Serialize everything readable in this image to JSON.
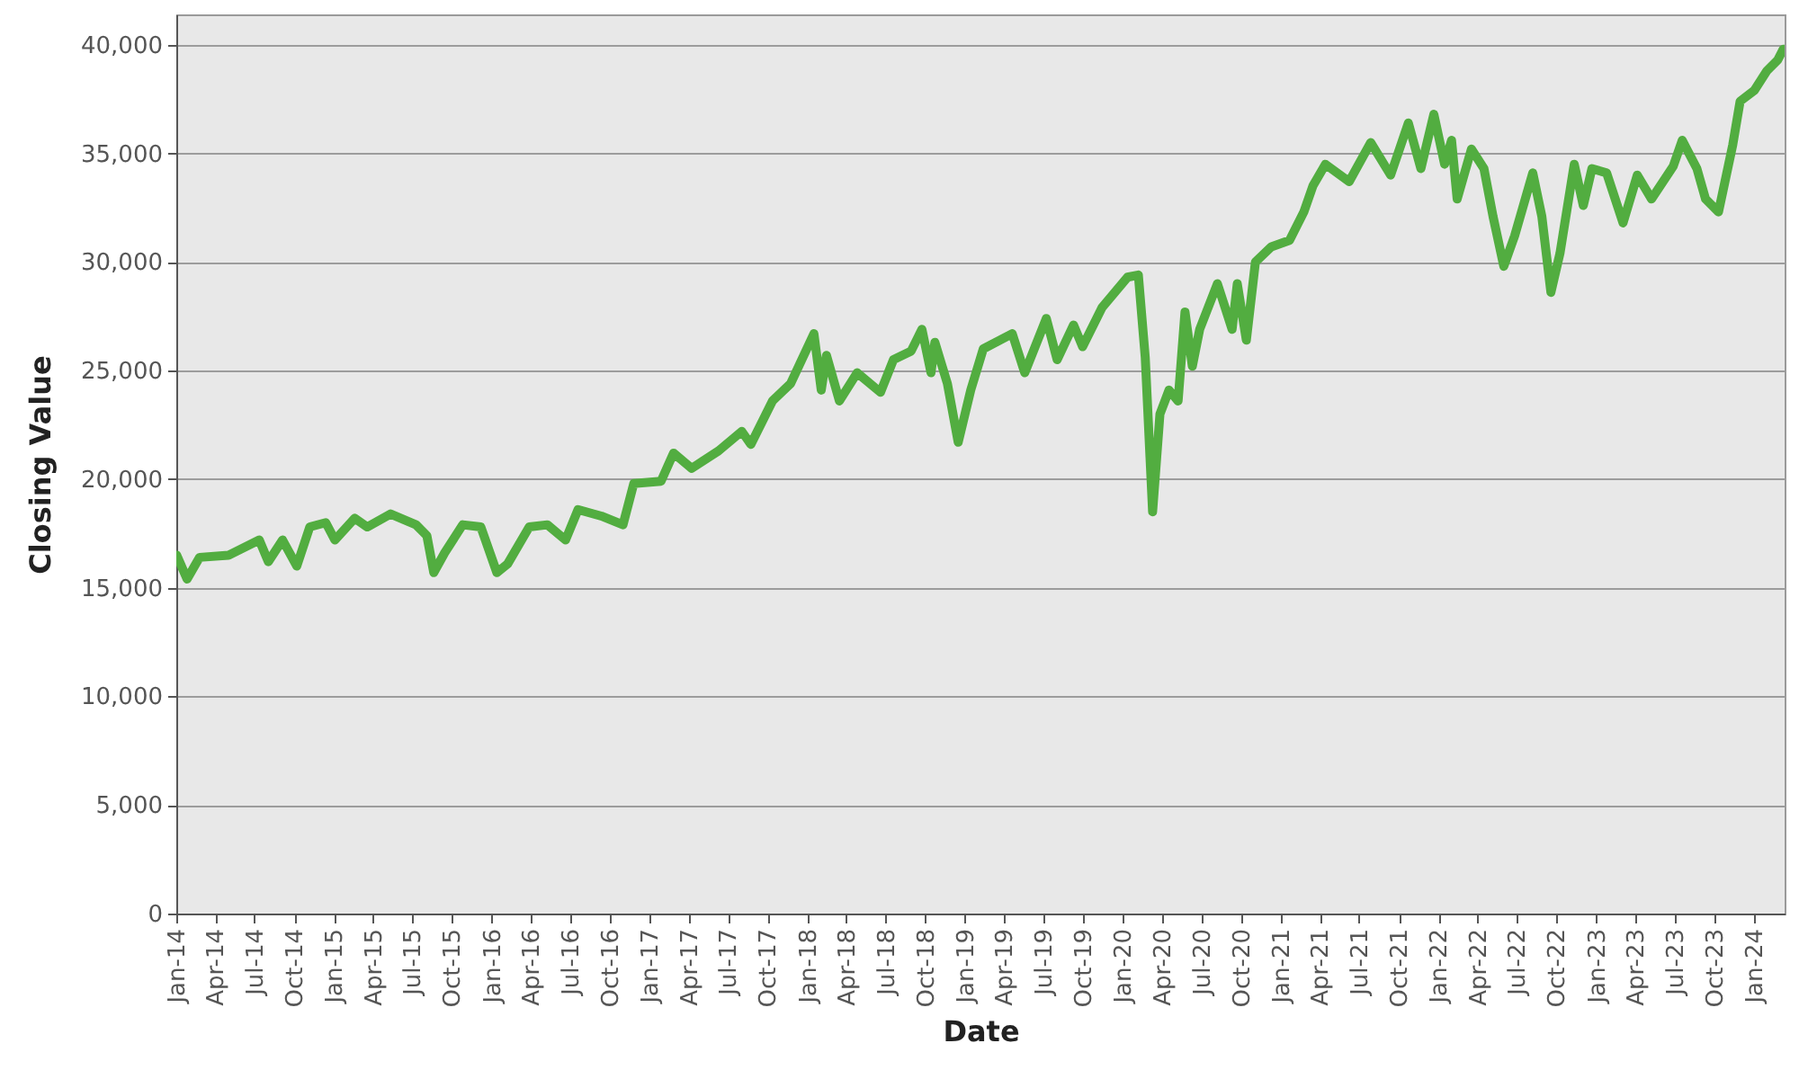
{
  "chart_data": {
    "type": "line",
    "xlabel": "Date",
    "ylabel": "Closing Value",
    "x": [
      "2014-01-02",
      "2014-01-26",
      "2014-02-24",
      "2014-05-02",
      "2014-07-12",
      "2014-08-02",
      "2014-09-04",
      "2014-10-07",
      "2014-11-06",
      "2014-12-13",
      "2015-01-03",
      "2015-02-18",
      "2015-03-19",
      "2015-05-12",
      "2015-07-10",
      "2015-08-04",
      "2015-08-20",
      "2015-09-14",
      "2015-10-26",
      "2015-12-07",
      "2016-01-13",
      "2016-02-07",
      "2016-03-28",
      "2016-05-09",
      "2016-06-20",
      "2016-07-19",
      "2016-09-11",
      "2016-10-31",
      "2016-11-25",
      "2017-01-27",
      "2017-02-25",
      "2017-04-08",
      "2017-06-09",
      "2017-08-02",
      "2017-08-23",
      "2017-10-12",
      "2017-11-23",
      "2018-01-16",
      "2018-02-02",
      "2018-02-14",
      "2018-03-16",
      "2018-04-26",
      "2018-06-19",
      "2018-07-19",
      "2018-08-29",
      "2018-09-23",
      "2018-10-14",
      "2018-10-23",
      "2018-11-21",
      "2018-12-16",
      "2019-01-14",
      "2019-02-12",
      "2019-04-20",
      "2019-05-19",
      "2019-07-08",
      "2019-08-02",
      "2019-09-09",
      "2019-09-30",
      "2019-11-14",
      "2020-01-12",
      "2020-02-06",
      "2020-02-22",
      "2020-03-10",
      "2020-03-27",
      "2020-04-17",
      "2020-05-08",
      "2020-05-24",
      "2020-06-10",
      "2020-06-27",
      "2020-08-07",
      "2020-09-10",
      "2020-09-22",
      "2020-10-13",
      "2020-11-03",
      "2020-12-10",
      "2021-01-21",
      "2021-02-23",
      "2021-03-16",
      "2021-04-14",
      "2021-06-08",
      "2021-07-28",
      "2021-09-12",
      "2021-10-23",
      "2021-11-21",
      "2021-12-21",
      "2022-01-15",
      "2022-01-31",
      "2022-02-13",
      "2022-03-18",
      "2022-04-16",
      "2022-05-07",
      "2022-06-01",
      "2022-06-26",
      "2022-08-07",
      "2022-08-28",
      "2022-09-18",
      "2022-10-09",
      "2022-11-11",
      "2022-12-02",
      "2022-12-22",
      "2023-01-25",
      "2023-03-04",
      "2023-04-06",
      "2023-05-09",
      "2023-06-28",
      "2023-07-19",
      "2023-08-22",
      "2023-09-11",
      "2023-10-11",
      "2023-11-13",
      "2023-11-30",
      "2024-01-02",
      "2024-01-31",
      "2024-02-25",
      "2024-03-09"
    ],
    "series": [
      {
        "color": "#52ad40",
        "values": [
          16500,
          15400,
          16400,
          16500,
          17200,
          16200,
          17200,
          16000,
          17800,
          18000,
          17200,
          18200,
          17800,
          18400,
          17900,
          17400,
          15700,
          16600,
          17900,
          17800,
          15700,
          16100,
          17800,
          17900,
          17200,
          18600,
          18300,
          17900,
          19800,
          19900,
          21200,
          20500,
          21300,
          22200,
          21600,
          23600,
          24400,
          26700,
          24100,
          25700,
          23600,
          24900,
          24000,
          25500,
          25900,
          26900,
          24900,
          26300,
          24400,
          21700,
          24100,
          26000,
          26700,
          24900,
          27400,
          25500,
          27100,
          26100,
          27900,
          29300,
          29400,
          25600,
          18500,
          23000,
          24100,
          23600,
          27700,
          25200,
          26900,
          29000,
          26900,
          29000,
          26400,
          30000,
          30700,
          31000,
          32300,
          33500,
          34500,
          33700,
          35500,
          34000,
          36400,
          34300,
          36800,
          34500,
          35600,
          32900,
          35200,
          34300,
          32100,
          29800,
          31200,
          34100,
          32100,
          28600,
          30400,
          34500,
          32600,
          34300,
          34100,
          31800,
          34000,
          32900,
          34400,
          35600,
          34300,
          32900,
          32300,
          35400,
          37400,
          37900,
          38800,
          39300,
          39800
        ]
      }
    ],
    "xlim": [
      "2014-01-01",
      "2024-03-12"
    ],
    "ylim": [
      0,
      41400
    ],
    "xticks": [
      {
        "value": "2014-01-01",
        "label": "Jan-14"
      },
      {
        "value": "2014-04-01",
        "label": "Apr-14"
      },
      {
        "value": "2014-07-01",
        "label": "Jul-14"
      },
      {
        "value": "2014-10-01",
        "label": "Oct-14"
      },
      {
        "value": "2015-01-01",
        "label": "Jan-15"
      },
      {
        "value": "2015-04-01",
        "label": "Apr-15"
      },
      {
        "value": "2015-07-01",
        "label": "Jul-15"
      },
      {
        "value": "2015-10-01",
        "label": "Oct-15"
      },
      {
        "value": "2016-01-01",
        "label": "Jan-16"
      },
      {
        "value": "2016-04-01",
        "label": "Apr-16"
      },
      {
        "value": "2016-07-01",
        "label": "Jul-16"
      },
      {
        "value": "2016-10-01",
        "label": "Oct-16"
      },
      {
        "value": "2017-01-01",
        "label": "Jan-17"
      },
      {
        "value": "2017-04-01",
        "label": "Apr-17"
      },
      {
        "value": "2017-07-01",
        "label": "Jul-17"
      },
      {
        "value": "2017-10-01",
        "label": "Oct-17"
      },
      {
        "value": "2018-01-01",
        "label": "Jan-18"
      },
      {
        "value": "2018-04-01",
        "label": "Apr-18"
      },
      {
        "value": "2018-07-01",
        "label": "Jul-18"
      },
      {
        "value": "2018-10-01",
        "label": "Oct-18"
      },
      {
        "value": "2019-01-01",
        "label": "Jan-19"
      },
      {
        "value": "2019-04-01",
        "label": "Apr-19"
      },
      {
        "value": "2019-07-01",
        "label": "Jul-19"
      },
      {
        "value": "2019-10-01",
        "label": "Oct-19"
      },
      {
        "value": "2020-01-01",
        "label": "Jan-20"
      },
      {
        "value": "2020-04-01",
        "label": "Apr-20"
      },
      {
        "value": "2020-07-01",
        "label": "Jul-20"
      },
      {
        "value": "2020-10-01",
        "label": "Oct-20"
      },
      {
        "value": "2021-01-01",
        "label": "Jan-21"
      },
      {
        "value": "2021-04-01",
        "label": "Apr-21"
      },
      {
        "value": "2021-07-01",
        "label": "Jul-21"
      },
      {
        "value": "2021-10-01",
        "label": "Oct-21"
      },
      {
        "value": "2022-01-01",
        "label": "Jan-22"
      },
      {
        "value": "2022-04-01",
        "label": "Apr-22"
      },
      {
        "value": "2022-07-01",
        "label": "Jul-22"
      },
      {
        "value": "2022-10-01",
        "label": "Oct-22"
      },
      {
        "value": "2023-01-01",
        "label": "Jan-23"
      },
      {
        "value": "2023-04-01",
        "label": "Apr-23"
      },
      {
        "value": "2023-07-01",
        "label": "Jul-23"
      },
      {
        "value": "2023-10-01",
        "label": "Oct-23"
      },
      {
        "value": "2024-01-01",
        "label": "Jan-24"
      }
    ],
    "yticks": [
      {
        "value": 0,
        "label": "0"
      },
      {
        "value": 5000,
        "label": "5,000"
      },
      {
        "value": 10000,
        "label": "10,000"
      },
      {
        "value": 15000,
        "label": "15,000"
      },
      {
        "value": 20000,
        "label": "20,000"
      },
      {
        "value": 25000,
        "label": "25,000"
      },
      {
        "value": 30000,
        "label": "30,000"
      },
      {
        "value": 35000,
        "label": "35,000"
      },
      {
        "value": 40000,
        "label": "40,000"
      }
    ],
    "grid": "y",
    "line_style": "solid"
  }
}
